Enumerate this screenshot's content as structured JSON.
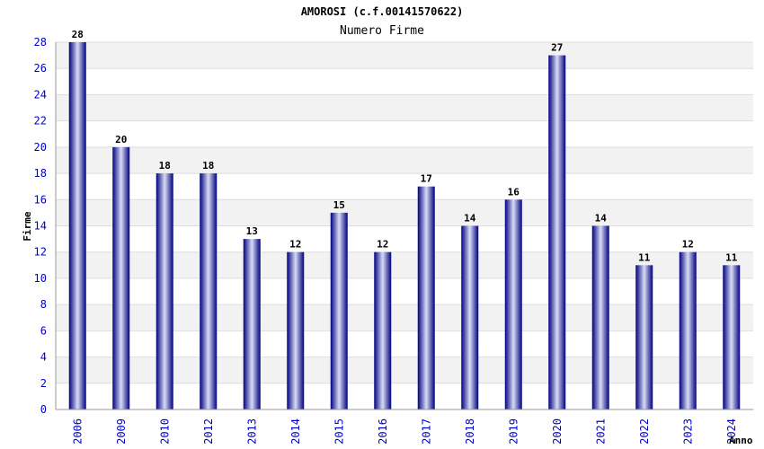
{
  "chart_data": {
    "type": "bar",
    "title": "AMOROSI (c.f.00141570622)",
    "subtitle": "Numero Firme",
    "xlabel": "Anno",
    "ylabel": "Firme",
    "categories": [
      "2006",
      "2009",
      "2010",
      "2012",
      "2013",
      "2014",
      "2015",
      "2016",
      "2017",
      "2018",
      "2019",
      "2020",
      "2021",
      "2022",
      "2023",
      "2024"
    ],
    "values": [
      28,
      20,
      18,
      18,
      13,
      12,
      15,
      12,
      17,
      14,
      16,
      27,
      14,
      11,
      12,
      11
    ],
    "ylim": [
      0,
      28
    ],
    "yticks": [
      0,
      2,
      4,
      6,
      8,
      10,
      12,
      14,
      16,
      18,
      20,
      22,
      24,
      26,
      28
    ],
    "grid": true,
    "bar_color": "#000080",
    "bar_highlight": "#d8dcf4",
    "band_color": "#f2f2f2",
    "tick_color": "#0000cc"
  }
}
